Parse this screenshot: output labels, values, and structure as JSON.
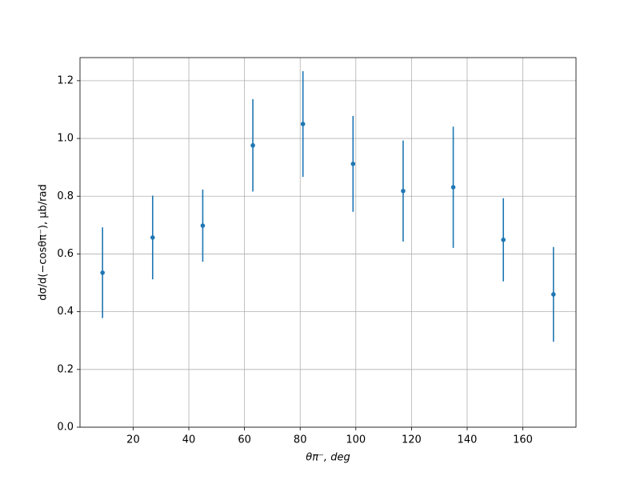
{
  "chart_data": {
    "type": "errorbar",
    "x_label": "θπ⁻, deg",
    "y_label": "dσ/d(−cosθπ⁻), μb/rad",
    "x": [
      9,
      27,
      45,
      63,
      81,
      99,
      117,
      135,
      153,
      171
    ],
    "values": [
      0.535,
      0.657,
      0.698,
      0.976,
      1.05,
      0.912,
      0.818,
      0.831,
      0.649,
      0.46
    ],
    "errors": [
      0.157,
      0.145,
      0.125,
      0.16,
      0.183,
      0.166,
      0.175,
      0.21,
      0.144,
      0.164
    ],
    "color": "#1f77b4",
    "xlim": [
      0.9,
      179.1
    ],
    "ylim": [
      0,
      1.28
    ],
    "xticks": [
      20,
      40,
      60,
      80,
      100,
      120,
      140,
      160
    ],
    "yticks": [
      {
        "value": 0,
        "label": "0.0"
      },
      {
        "value": 0.2,
        "label": "0.2"
      },
      {
        "value": 0.4,
        "label": "0.4"
      },
      {
        "value": 0.6,
        "label": "0.6"
      },
      {
        "value": 0.8,
        "label": "0.8"
      },
      {
        "value": 1,
        "label": "1.0"
      },
      {
        "value": 1.2,
        "label": "1.2"
      }
    ],
    "grid": true
  }
}
